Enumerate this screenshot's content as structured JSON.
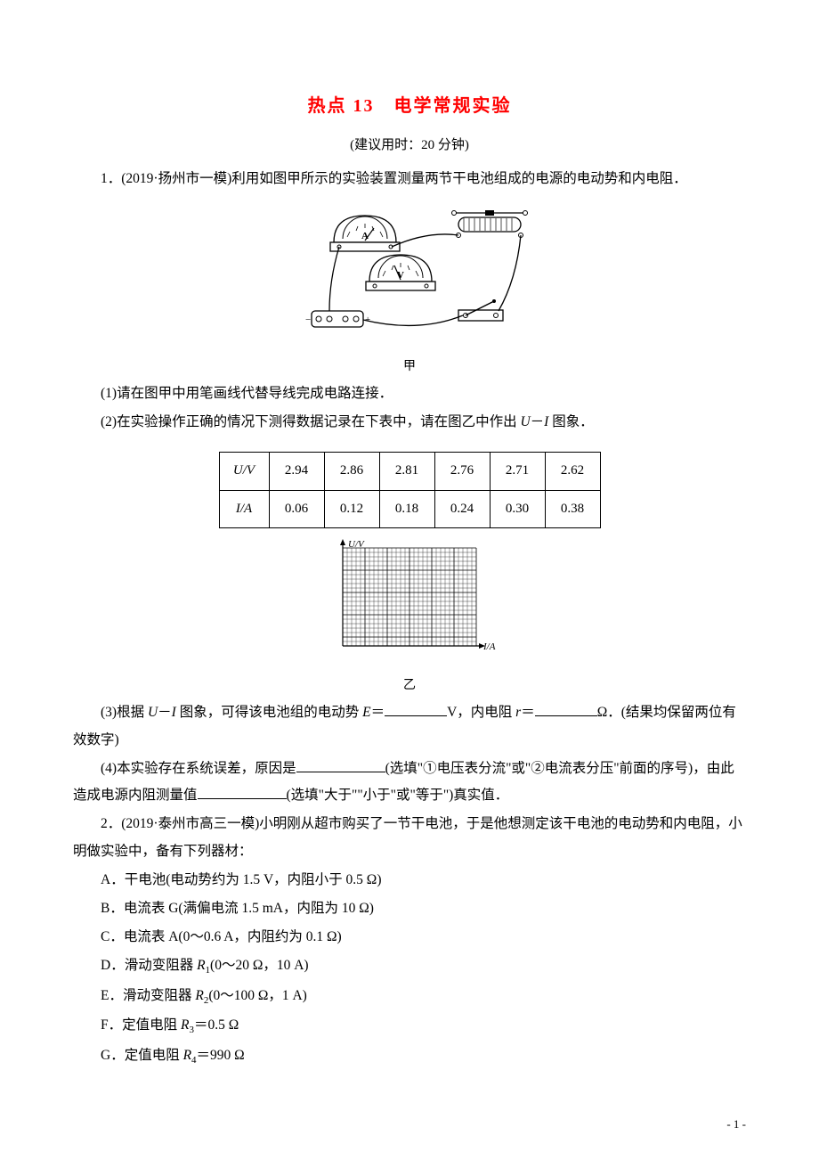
{
  "title": "热点 13　电学常规实验",
  "subtitle": "(建议用时：20 分钟)",
  "q1": {
    "stem": "1．(2019·扬州市一模)利用如图甲所示的实验装置测量两节干电池组成的电源的电动势和内电阻．",
    "fig1_caption": "甲",
    "part1": "(1)请在图甲中用笔画线代替导线完成电路连接．",
    "part2": "(2)在实验操作正确的情况下测得数据记录在下表中，请在图乙中作出 ",
    "part2_tail": " 图象．",
    "table": {
      "row1_head": "U/V",
      "row1": [
        "2.94",
        "2.86",
        "2.81",
        "2.76",
        "2.71",
        "2.62"
      ],
      "row2_head": "I/A",
      "row2": [
        "0.06",
        "0.12",
        "0.18",
        "0.24",
        "0.30",
        "0.38"
      ]
    },
    "grid": {
      "y_label": "U/V",
      "x_label": "I/A",
      "cols": 30,
      "rows": 22,
      "cell": 5,
      "line_color": "#000000",
      "bg_color": "#ffffff"
    },
    "fig2_caption": "乙",
    "part3_a": "(3)根据 ",
    "part3_b": " 图象，可得该电池组的电动势 ",
    "part3_c": "＝",
    "part3_d": "V，内电阻 ",
    "part3_e": "＝",
    "part3_f": "Ω．(结果均保留两位有效数字)",
    "part4_a": "(4)本实验存在系统误差，原因是",
    "part4_b": "(选填\"①电压表分流\"或\"②电流表分压\"前面的序号)，由此造成电源内阻测量值",
    "part4_c": "(选填\"大于\"\"小于\"或\"等于\")真实值．"
  },
  "q2": {
    "stem": "2．(2019·泰州市高三一模)小明刚从超市购买了一节干电池，于是他想测定该干电池的电动势和内电阻，小明做实验中，备有下列器材：",
    "items": {
      "A": "A．干电池(电动势约为 1.5 V，内阻小于 0.5 Ω)",
      "B": "B．电流表 G(满偏电流 1.5 mA，内阻为 10 Ω)",
      "C": "C．电流表 A(0～0.6 A，内阻约为 0.1 Ω)",
      "D_a": "D．滑动变阻器 ",
      "D_b": "(0～20 Ω，10 A)",
      "E_a": "E．滑动变阻器 ",
      "E_b": "(0～100 Ω，1 A)",
      "F_a": "F．定值电阻 ",
      "F_b": "＝0.5 Ω",
      "G_a": "G．定值电阻 ",
      "G_b": "＝990 Ω"
    }
  },
  "symbols": {
    "U": "U",
    "I": "I",
    "E": "E",
    "r": "r",
    "R": "R",
    "dash": "－",
    "s1": "1",
    "s2": "2",
    "s3": "3",
    "s4": "4"
  },
  "page_num": "- 1 -",
  "circuit": {
    "stroke": "#000000",
    "fill": "#ffffff"
  }
}
